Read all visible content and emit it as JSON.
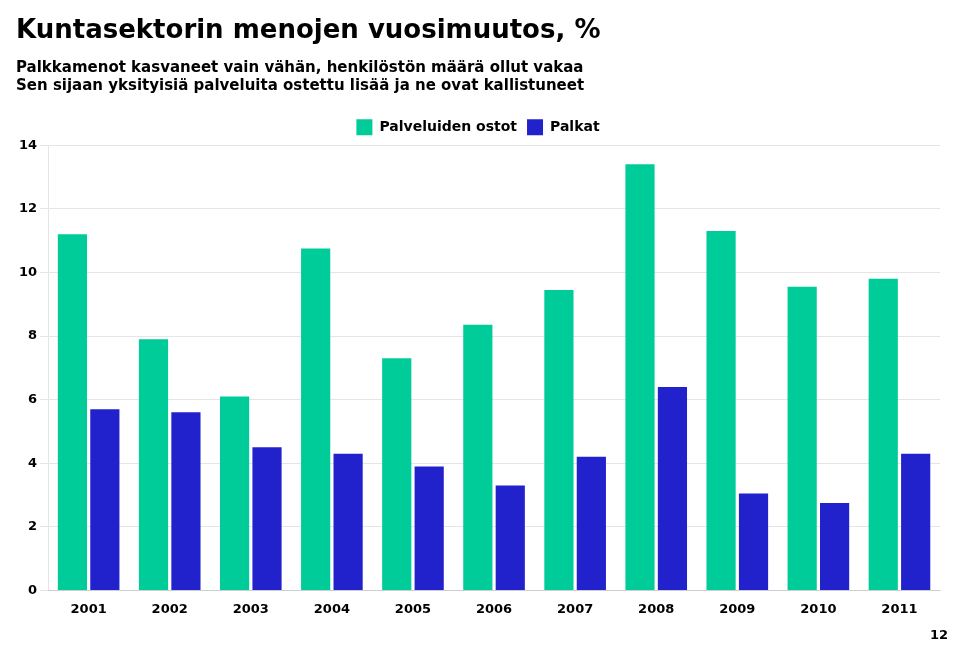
{
  "chart_data": {
    "type": "bar",
    "title": "Kuntasektorin menojen vuosimuutos, %",
    "subtitle": [
      "Palkkamenot kasvaneet vain vähän, henkilöstön määrä ollut vakaa",
      "Sen sijaan yksityisiä palveluita ostettu lisää ja ne ovat kallistuneet"
    ],
    "annotations": [
      "12"
    ],
    "categories": [
      "2001",
      "2002",
      "2003",
      "2004",
      "2005",
      "2006",
      "2007",
      "2008",
      "2009",
      "2010",
      "2011"
    ],
    "series": [
      {
        "name": "Palveluiden ostot",
        "color": "#00CC99",
        "values": [
          11.2,
          7.9,
          6.1,
          10.75,
          7.3,
          8.35,
          9.45,
          13.4,
          11.3,
          9.55,
          9.8
        ]
      },
      {
        "name": "Palkat",
        "color": "#2222CC",
        "values": [
          5.7,
          5.6,
          4.5,
          4.3,
          3.9,
          3.3,
          4.2,
          6.4,
          3.05,
          2.75,
          4.3
        ]
      }
    ],
    "ylim": [
      0,
      14
    ],
    "yticks": [
      0,
      2,
      4,
      6,
      8,
      10,
      12,
      14
    ],
    "grid": true,
    "legend": "top"
  }
}
